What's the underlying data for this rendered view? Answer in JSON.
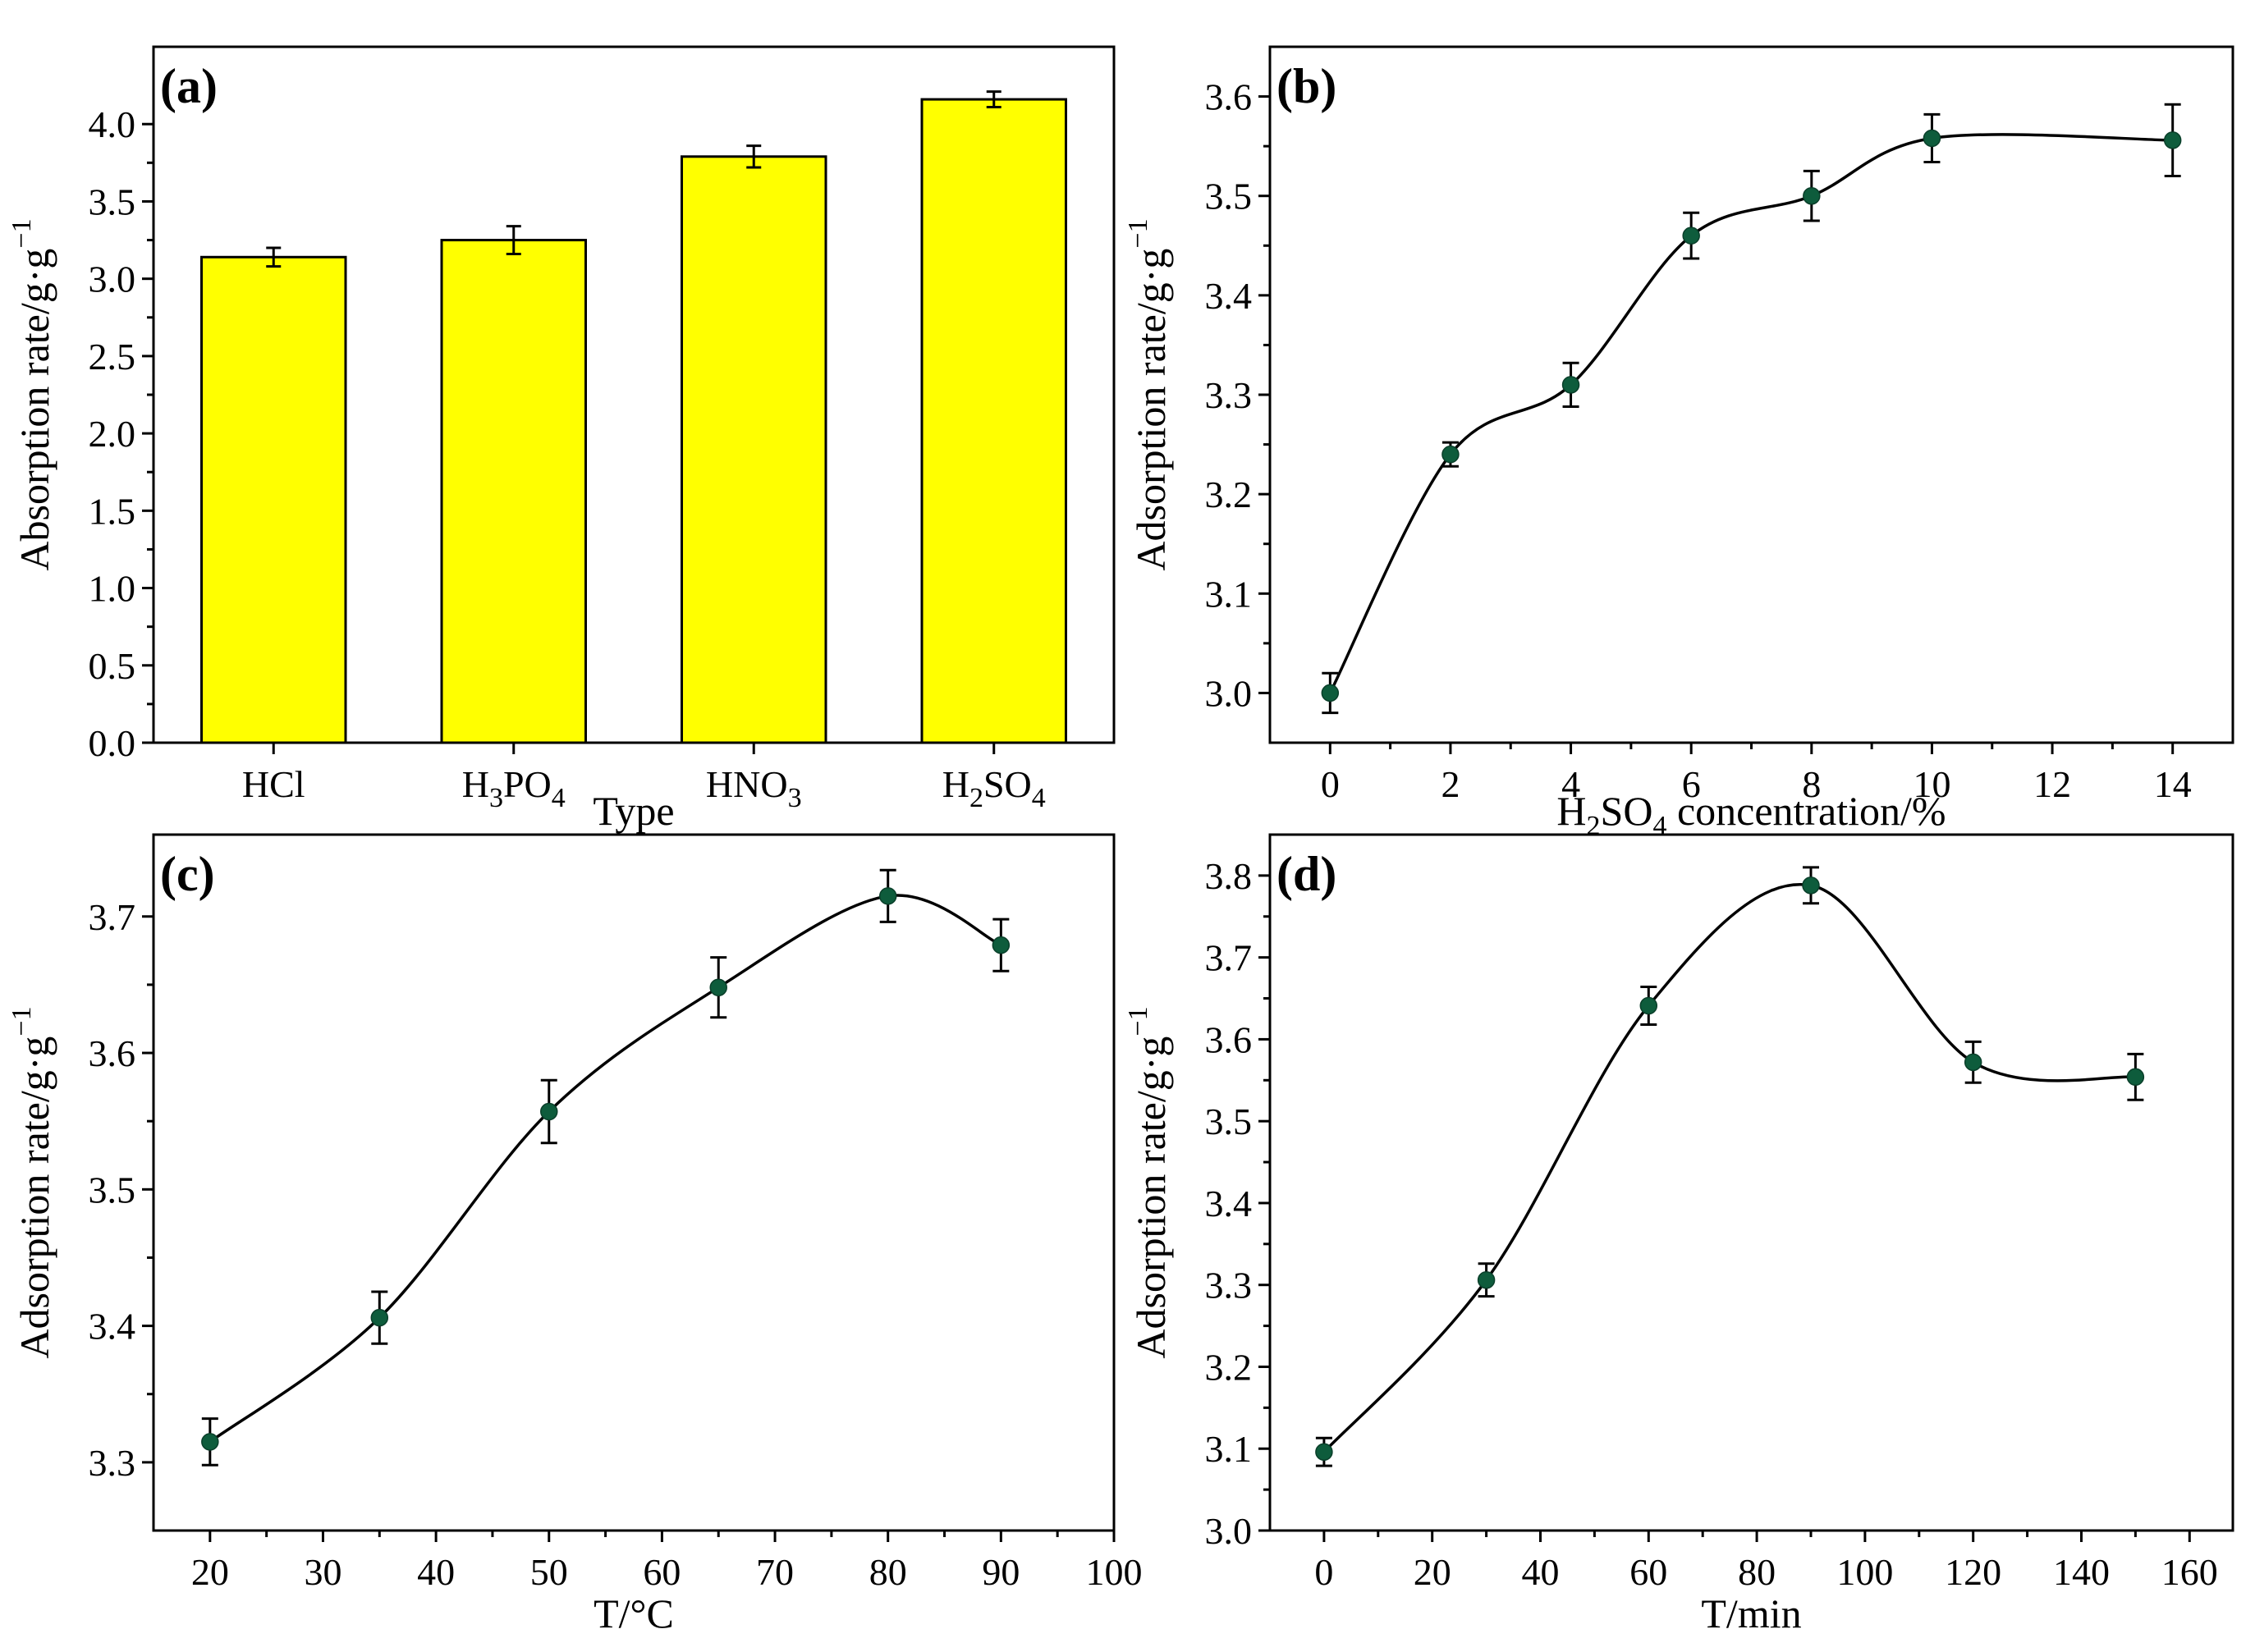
{
  "chart_data": [
    {
      "type": "bar",
      "panel_label": "(a)",
      "xlabel": "Type",
      "ylabel": "Absorption rate/g·g",
      "ylabel_sup": "−1",
      "categories": [
        {
          "base": "HCl",
          "parts": [
            [
              "HCl",
              ""
            ]
          ]
        },
        {
          "base": "H3PO4",
          "parts": [
            [
              "H",
              ""
            ],
            [
              "3",
              "sub"
            ],
            [
              "PO",
              ""
            ],
            [
              "4",
              "sub"
            ]
          ]
        },
        {
          "base": "HNO3",
          "parts": [
            [
              "HNO",
              ""
            ],
            [
              "3",
              "sub"
            ]
          ]
        },
        {
          "base": "H2SO4",
          "parts": [
            [
              "H",
              ""
            ],
            [
              "2",
              "sub"
            ],
            [
              "SO",
              ""
            ],
            [
              "4",
              "sub"
            ]
          ]
        }
      ],
      "values": [
        3.14,
        3.25,
        3.79,
        4.16
      ],
      "errors": [
        0.06,
        0.09,
        0.07,
        0.05
      ],
      "ylim": [
        0,
        4.5
      ],
      "yticks": [
        0.0,
        0.5,
        1.0,
        1.5,
        2.0,
        2.5,
        3.0,
        3.5,
        4.0
      ],
      "ytick_decimals": 1,
      "bar_color": "#ffff00"
    },
    {
      "type": "line",
      "panel_label": "(b)",
      "xlabel_parts": [
        [
          "H",
          ""
        ],
        [
          "2",
          "sub"
        ],
        [
          "SO",
          ""
        ],
        [
          "4",
          "sub"
        ],
        [
          " concentration/%",
          ""
        ]
      ],
      "ylabel": "Adsorption rate/g·g",
      "ylabel_sup": "−1",
      "x": [
        0,
        2,
        4,
        6,
        8,
        10,
        14
      ],
      "y": [
        3.0,
        3.24,
        3.31,
        3.46,
        3.5,
        3.558,
        3.556
      ],
      "errors": [
        0.02,
        0.012,
        0.022,
        0.023,
        0.025,
        0.024,
        0.036
      ],
      "xlim": [
        -1,
        15
      ],
      "ylim": [
        2.95,
        3.65
      ],
      "xticks": [
        0,
        2,
        4,
        6,
        8,
        10,
        12,
        14
      ],
      "yticks": [
        3.0,
        3.1,
        3.2,
        3.3,
        3.4,
        3.5,
        3.6
      ],
      "ytick_decimals": 1,
      "point_color": "#0e5c3c"
    },
    {
      "type": "line",
      "panel_label": "(c)",
      "xlabel": "T/°C",
      "ylabel": "Adsorption rate/g·g",
      "ylabel_sup": "−1",
      "x": [
        20,
        35,
        50,
        65,
        80,
        90
      ],
      "y": [
        3.315,
        3.406,
        3.557,
        3.648,
        3.715,
        3.679
      ],
      "errors": [
        0.017,
        0.019,
        0.023,
        0.022,
        0.019,
        0.019
      ],
      "xlim": [
        15,
        100
      ],
      "ylim": [
        3.25,
        3.76
      ],
      "xticks": [
        20,
        30,
        40,
        50,
        60,
        70,
        80,
        90,
        100
      ],
      "yticks": [
        3.3,
        3.4,
        3.5,
        3.6,
        3.7
      ],
      "ytick_decimals": 1,
      "point_color": "#0e5c3c"
    },
    {
      "type": "line",
      "panel_label": "(d)",
      "xlabel": "T/min",
      "ylabel": "Adsorption rate/g·g",
      "ylabel_sup": "−1",
      "x": [
        0,
        30,
        60,
        90,
        120,
        150
      ],
      "y": [
        3.096,
        3.306,
        3.641,
        3.788,
        3.572,
        3.554
      ],
      "errors": [
        0.017,
        0.02,
        0.023,
        0.022,
        0.025,
        0.028
      ],
      "xlim": [
        -10,
        168
      ],
      "ylim": [
        3.0,
        3.85
      ],
      "xticks": [
        0,
        20,
        40,
        60,
        80,
        100,
        120,
        140,
        160
      ],
      "yticks": [
        3.0,
        3.1,
        3.2,
        3.3,
        3.4,
        3.5,
        3.6,
        3.7,
        3.8
      ],
      "ytick_decimals": 1,
      "point_color": "#0e5c3c"
    }
  ]
}
